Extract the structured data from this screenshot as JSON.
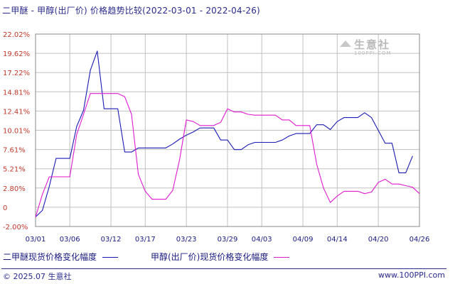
{
  "header": {
    "title": "二甲醚 - 甲醇(出厂价) 价格趋势比较(2022-03-01 - 2022-04-26)"
  },
  "watermark": {
    "brand": "生意社",
    "url": "100PPI.COM"
  },
  "footer": {
    "copyright": "© 2025.07 生意社",
    "site": "www.100PPI.com"
  },
  "colors": {
    "series1": "#1a1ab4",
    "series2": "#e01ad0",
    "grid": "#c0c0c0",
    "axis_text": "#c0392b",
    "text": "#1a1a80"
  },
  "chart_data": {
    "type": "line",
    "title": "二甲醚 - 甲醇(出厂价) 价格趋势比较(2022-03-01 - 2022-04-26)",
    "ylim": [
      -2.0,
      22.02
    ],
    "y_ticks": [
      "22.02%",
      "19.62%",
      "17.22%",
      "14.81%",
      "12.41%",
      "10.01%",
      "7.61%",
      "5.21%",
      "2.80%",
      "0",
      "-2.00%"
    ],
    "x_ticks": [
      "03/01",
      "03/06",
      "03/12",
      "03/17",
      "03/23",
      "03/29",
      "04/03",
      "04/09",
      "04/14",
      "04/20",
      "04/26"
    ],
    "grid": true,
    "legend_position": "bottom",
    "series": [
      {
        "name": "二甲醚现货价格变化幅度",
        "color": "#1a1ab4",
        "points": [
          [
            "03/01",
            -0.8
          ],
          [
            "03/02",
            0.0
          ],
          [
            "03/03",
            3.0
          ],
          [
            "03/04",
            6.5
          ],
          [
            "03/05",
            6.5
          ],
          [
            "03/06",
            6.5
          ],
          [
            "03/07",
            10.5
          ],
          [
            "03/08",
            12.5
          ],
          [
            "03/09",
            17.5
          ],
          [
            "03/10",
            19.9
          ],
          [
            "03/11",
            12.7
          ],
          [
            "03/12",
            12.7
          ],
          [
            "03/13",
            12.7
          ],
          [
            "03/14",
            7.3
          ],
          [
            "03/15",
            7.3
          ],
          [
            "03/16",
            7.8
          ],
          [
            "03/17",
            7.8
          ],
          [
            "03/18",
            7.8
          ],
          [
            "03/19",
            7.8
          ],
          [
            "03/20",
            7.8
          ],
          [
            "03/21",
            8.3
          ],
          [
            "03/22",
            8.9
          ],
          [
            "03/23",
            9.4
          ],
          [
            "03/24",
            9.8
          ],
          [
            "03/25",
            10.3
          ],
          [
            "03/26",
            10.3
          ],
          [
            "03/27",
            10.3
          ],
          [
            "03/28",
            8.8
          ],
          [
            "03/29",
            8.8
          ],
          [
            "03/30",
            7.6
          ],
          [
            "03/31",
            7.6
          ],
          [
            "04/01",
            8.2
          ],
          [
            "04/02",
            8.5
          ],
          [
            "04/03",
            8.5
          ],
          [
            "04/04",
            8.5
          ],
          [
            "04/05",
            8.5
          ],
          [
            "04/06",
            8.8
          ],
          [
            "04/07",
            9.3
          ],
          [
            "04/08",
            9.6
          ],
          [
            "04/09",
            9.6
          ],
          [
            "04/10",
            9.6
          ],
          [
            "04/11",
            10.7
          ],
          [
            "04/12",
            10.7
          ],
          [
            "04/13",
            10.1
          ],
          [
            "04/14",
            11.1
          ],
          [
            "04/15",
            11.6
          ],
          [
            "04/16",
            11.6
          ],
          [
            "04/17",
            11.6
          ],
          [
            "04/18",
            12.2
          ],
          [
            "04/19",
            11.6
          ],
          [
            "04/20",
            10.0
          ],
          [
            "04/21",
            8.4
          ],
          [
            "04/22",
            8.4
          ],
          [
            "04/23",
            4.7
          ],
          [
            "04/24",
            4.7
          ],
          [
            "04/25",
            6.8
          ]
        ]
      },
      {
        "name": "甲醇(出厂价)现货价格变化幅度",
        "color": "#e01ad0",
        "points": [
          [
            "03/01",
            -0.8
          ],
          [
            "03/02",
            2.0
          ],
          [
            "03/03",
            4.2
          ],
          [
            "03/04",
            4.2
          ],
          [
            "03/05",
            4.2
          ],
          [
            "03/06",
            4.2
          ],
          [
            "03/07",
            9.5
          ],
          [
            "03/08",
            12.0
          ],
          [
            "03/09",
            14.6
          ],
          [
            "03/10",
            14.6
          ],
          [
            "03/11",
            14.6
          ],
          [
            "03/12",
            14.6
          ],
          [
            "03/13",
            14.6
          ],
          [
            "03/14",
            14.2
          ],
          [
            "03/15",
            12.0
          ],
          [
            "03/16",
            4.5
          ],
          [
            "03/17",
            2.4
          ],
          [
            "03/18",
            1.4
          ],
          [
            "03/19",
            1.4
          ],
          [
            "03/20",
            1.4
          ],
          [
            "03/21",
            2.5
          ],
          [
            "03/22",
            6.3
          ],
          [
            "03/23",
            11.3
          ],
          [
            "03/24",
            11.1
          ],
          [
            "03/25",
            10.6
          ],
          [
            "03/26",
            10.6
          ],
          [
            "03/27",
            10.6
          ],
          [
            "03/28",
            11.0
          ],
          [
            "03/29",
            12.7
          ],
          [
            "03/30",
            12.3
          ],
          [
            "03/31",
            12.3
          ],
          [
            "04/01",
            12.0
          ],
          [
            "04/02",
            11.9
          ],
          [
            "04/03",
            11.9
          ],
          [
            "04/04",
            11.9
          ],
          [
            "04/05",
            11.9
          ],
          [
            "04/06",
            11.3
          ],
          [
            "04/07",
            11.3
          ],
          [
            "04/08",
            10.6
          ],
          [
            "04/09",
            10.6
          ],
          [
            "04/10",
            10.6
          ],
          [
            "04/11",
            5.8
          ],
          [
            "04/12",
            2.8
          ],
          [
            "04/13",
            1.0
          ],
          [
            "04/14",
            1.8
          ],
          [
            "04/15",
            2.4
          ],
          [
            "04/16",
            2.4
          ],
          [
            "04/17",
            2.4
          ],
          [
            "04/18",
            2.1
          ],
          [
            "04/19",
            2.3
          ],
          [
            "04/20",
            3.5
          ],
          [
            "04/21",
            3.9
          ],
          [
            "04/22",
            3.3
          ],
          [
            "04/23",
            3.3
          ],
          [
            "04/24",
            3.1
          ],
          [
            "04/25",
            2.9
          ],
          [
            "04/26",
            2.1
          ]
        ]
      }
    ]
  }
}
